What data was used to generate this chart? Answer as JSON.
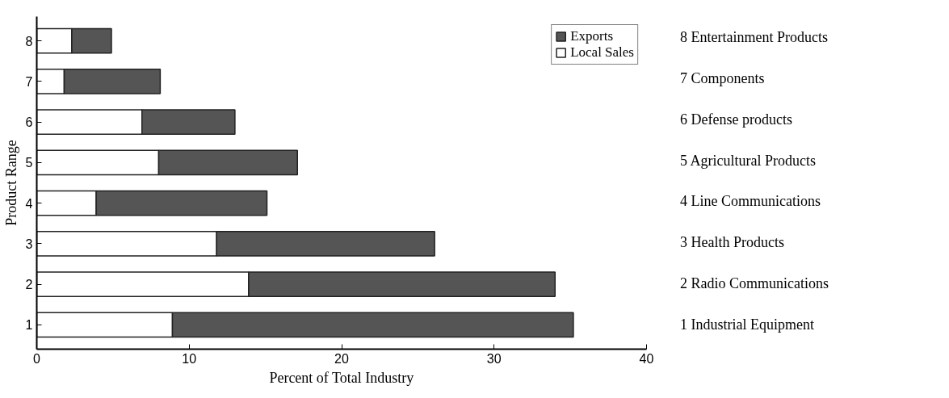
{
  "chart_data": {
    "type": "bar",
    "orientation": "horizontal",
    "stacked": true,
    "xlabel": "Percent of Total Industry",
    "ylabel": "Product Range",
    "categories": [
      "8",
      "7",
      "6",
      "5",
      "4",
      "3",
      "2",
      "1"
    ],
    "series": [
      {
        "name": "Local Sales",
        "color": "#ffffff",
        "values": [
          2.3,
          1.8,
          6.9,
          8.0,
          3.9,
          11.8,
          13.9,
          8.9
        ]
      },
      {
        "name": "Exports",
        "color": "#555555",
        "values": [
          2.6,
          6.3,
          6.1,
          9.1,
          11.2,
          14.3,
          20.1,
          26.3
        ]
      }
    ],
    "xlim": [
      0,
      40
    ],
    "xticks": [
      0,
      10,
      20,
      30,
      40
    ],
    "grid": false,
    "legend": "top right",
    "annotations": [
      "8  Entertainment Products",
      "7  Components",
      "6  Defense products",
      "5  Agricultural Products",
      "4  Line Communications",
      "3  Health Products",
      "2  Radio Communications",
      "1  Industrial Equipment"
    ]
  }
}
